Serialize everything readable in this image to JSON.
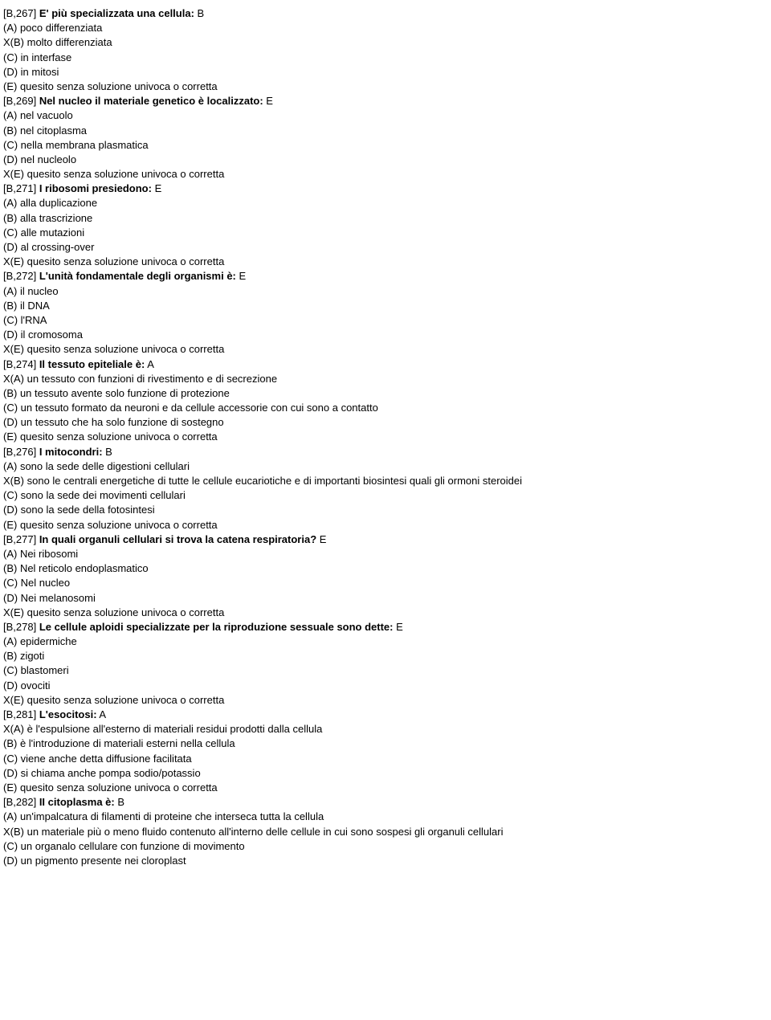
{
  "questions": [
    {
      "id": "[B,267]",
      "text": "E' più specializzata una cellula:",
      "ans": "B",
      "opts": [
        "(A) poco differenziata",
        "X(B) molto differenziata",
        "(C) in interfase",
        "(D) in mitosi",
        "(E) quesito senza soluzione univoca o corretta"
      ]
    },
    {
      "id": "[B,269]",
      "text": "Nel nucleo il materiale genetico è localizzato:",
      "ans": "E",
      "opts": [
        "(A) nel vacuolo",
        "(B) nel citoplasma",
        "(C) nella membrana plasmatica",
        "(D) nel nucleolo",
        "X(E) quesito senza soluzione univoca o corretta"
      ]
    },
    {
      "id": "[B,271]",
      "text": "I ribosomi presiedono:",
      "ans": "E",
      "opts": [
        "(A) alla duplicazione",
        "(B) alla trascrizione",
        "(C) alle mutazioni",
        "(D) al crossing-over",
        "X(E) quesito senza soluzione univoca o corretta"
      ]
    },
    {
      "id": "[B,272]",
      "text": "L'unità fondamentale degli organismi è:",
      "ans": "E",
      "opts": [
        "(A) il nucleo",
        "(B) il DNA",
        "(C) l'RNA",
        "(D) il cromosoma",
        "X(E) quesito senza soluzione univoca o corretta"
      ]
    },
    {
      "id": "[B,274]",
      "text": "Il tessuto epiteliale è:",
      "ans": "A",
      "opts": [
        "X(A) un tessuto con funzioni di rivestimento e di secrezione",
        "(B) un tessuto avente solo funzione di protezione",
        "(C) un tessuto formato da neuroni e da cellule accessorie con cui sono a contatto",
        "(D) un tessuto che ha solo funzione di sostegno",
        "(E) quesito senza soluzione univoca o corretta"
      ]
    },
    {
      "id": "[B,276]",
      "text": "I mitocondri:",
      "ans": "B",
      "opts": [
        "(A) sono la sede delle digestioni cellulari",
        "X(B) sono le centrali energetiche di tutte le cellule eucariotiche e di importanti biosintesi quali gli ormoni steroidei",
        "(C) sono la sede dei movimenti cellulari",
        "(D) sono la sede della fotosintesi",
        "(E) quesito senza soluzione univoca o corretta"
      ]
    },
    {
      "id": "[B,277]",
      "text": "In quali organuli cellulari si trova la catena respiratoria?",
      "ans": "E",
      "opts": [
        "(A) Nei ribosomi",
        "(B) Nel reticolo endoplasmatico",
        "(C) Nel nucleo",
        "(D) Nei melanosomi",
        "X(E) quesito senza soluzione univoca o corretta"
      ]
    },
    {
      "id": "[B,278]",
      "text": "Le cellule aploidi specializzate per la riproduzione sessuale sono dette:",
      "ans": "E",
      "opts": [
        "(A) epidermiche",
        "(B) zigoti",
        "(C) blastomeri",
        "(D) ovociti",
        "X(E) quesito senza soluzione univoca o corretta"
      ]
    },
    {
      "id": "[B,281]",
      "text": "L'esocitosi:",
      "ans": "A",
      "opts": [
        "X(A) è l'espulsione all'esterno di materiali residui prodotti dalla cellula",
        "(B) è l'introduzione di materiali esterni nella cellula",
        "(C) viene anche detta diffusione facilitata",
        "(D) si chiama anche pompa sodio/potassio",
        "(E) quesito senza soluzione univoca o corretta"
      ]
    },
    {
      "id": "[B,282]",
      "text": "II citoplasma è:",
      "ans": "B",
      "opts": [
        "(A) un'impalcatura di filamenti di proteine che interseca tutta la cellula",
        "X(B) un materiale più o meno fluido contenuto all'interno delle cellule in cui sono sospesi gli organuli cellulari",
        "(C) un organalo cellulare con funzione di movimento",
        "(D) un pigmento presente nei cloroplast"
      ]
    }
  ]
}
